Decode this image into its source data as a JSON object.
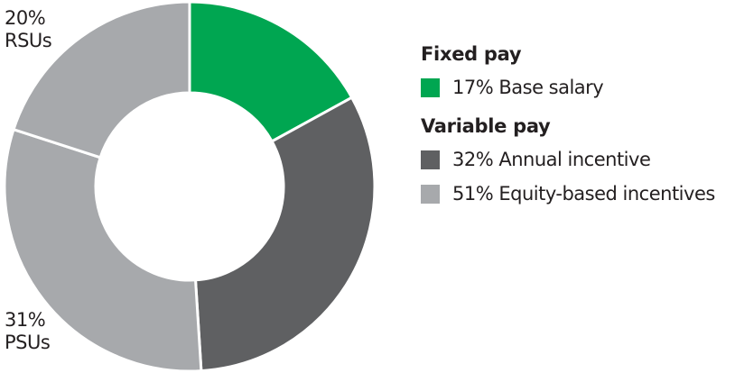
{
  "chart_data": {
    "type": "pie",
    "donut": true,
    "slices": [
      {
        "label": "17% Base salary",
        "value": 17,
        "color": "#00a651"
      },
      {
        "label": "32% Annual incentive",
        "value": 32,
        "color": "#5f6062"
      },
      {
        "label": "31% PSUs",
        "value": 31,
        "color": "#a7a9ac"
      },
      {
        "label": "20% RSUs",
        "value": 20,
        "color": "#a7a9ac"
      }
    ],
    "annotations": {
      "rsus_pct": "20%",
      "rsus": "RSUs",
      "psus_pct": "31%",
      "psus": "PSUs"
    },
    "legend": {
      "placement": "right",
      "groups": [
        {
          "title": "Fixed pay",
          "items": [
            {
              "label": "17% Base salary",
              "color": "#00a651"
            }
          ]
        },
        {
          "title": "Variable pay",
          "items": [
            {
              "label": "32% Annual incentive",
              "color": "#5f6062"
            },
            {
              "label": "51% Equity-based incentives",
              "color": "#a7a9ac"
            }
          ]
        }
      ]
    }
  }
}
